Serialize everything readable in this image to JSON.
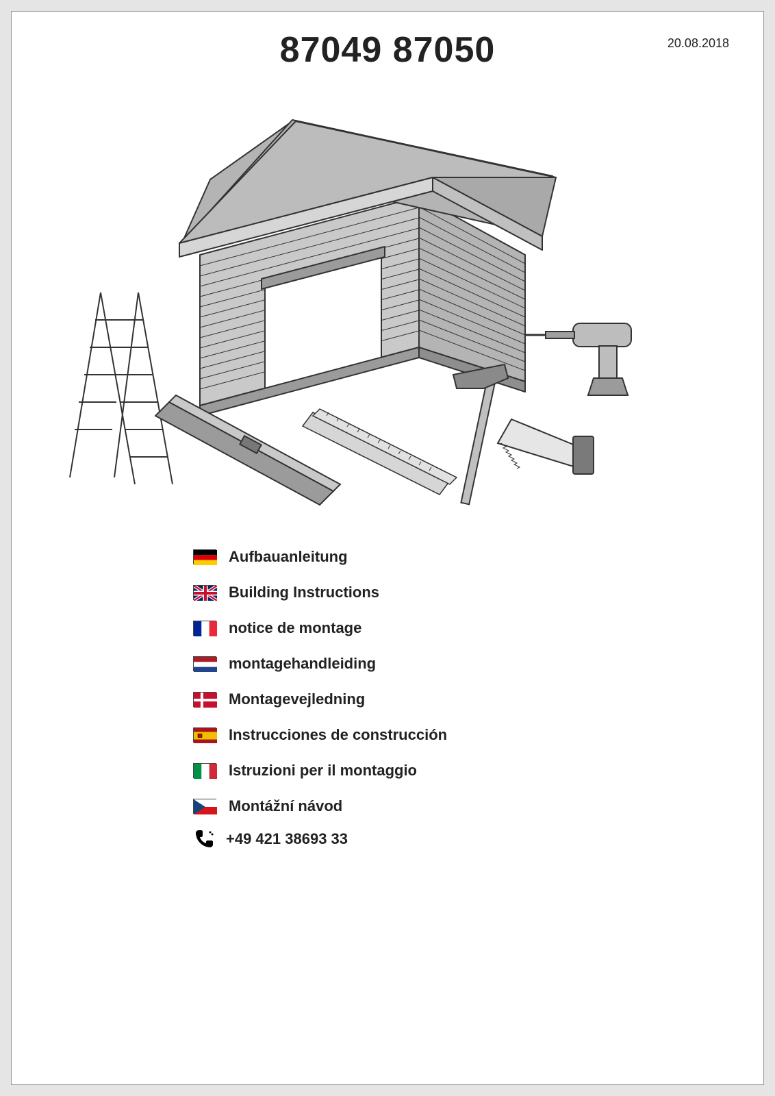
{
  "header": {
    "date": "20.08.2018",
    "title": "87049 87050"
  },
  "illustration": {
    "colors": {
      "fill_light": "#c9c9c9",
      "fill_mid": "#b4b4b4",
      "fill_dark": "#9b9b9b",
      "stroke": "#333333",
      "white": "#ffffff"
    }
  },
  "languages": [
    {
      "flag": "de",
      "label": "Aufbauanleitung"
    },
    {
      "flag": "gb",
      "label": "Building Instructions"
    },
    {
      "flag": "fr",
      "label": "notice de montage"
    },
    {
      "flag": "nl",
      "label": "montagehandleiding"
    },
    {
      "flag": "dk",
      "label": "Montagevejledning"
    },
    {
      "flag": "es",
      "label": "Instrucciones de construcción"
    },
    {
      "flag": "it",
      "label": "Istruzioni per il montaggio"
    },
    {
      "flag": "cz",
      "label": "Montážní návod"
    }
  ],
  "flags": {
    "de": {
      "stripes_h": [
        "#000000",
        "#dd0000",
        "#ffcc00"
      ]
    },
    "gb": {
      "type": "union"
    },
    "fr": {
      "stripes_v": [
        "#002395",
        "#ffffff",
        "#ed2939"
      ]
    },
    "nl": {
      "stripes_h": [
        "#ae1c28",
        "#ffffff",
        "#21468b"
      ]
    },
    "dk": {
      "type": "dk",
      "bg": "#c8102e",
      "cross": "#ffffff"
    },
    "es": {
      "type": "es",
      "stripes_h": [
        "#aa151b",
        "#f1bf00",
        "#aa151b"
      ],
      "ratios": [
        0.25,
        0.5,
        0.25
      ]
    },
    "it": {
      "stripes_v": [
        "#009246",
        "#ffffff",
        "#ce2b37"
      ]
    },
    "cz": {
      "type": "cz",
      "top": "#ffffff",
      "bottom": "#d7141a",
      "tri": "#11457e"
    }
  },
  "contact": {
    "phone": "+49 421 38693 33"
  }
}
